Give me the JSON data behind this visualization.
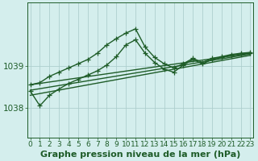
{
  "title": "Graphe pression niveau de la mer (hPa)",
  "background_color": "#d4eeed",
  "grid_color": "#aecfce",
  "line_color": "#1e5c28",
  "x_labels": [
    "0",
    "1",
    "2",
    "3",
    "4",
    "5",
    "6",
    "7",
    "8",
    "9",
    "10",
    "11",
    "12",
    "13",
    "14",
    "15",
    "16",
    "17",
    "18",
    "19",
    "20",
    "21",
    "22",
    "23"
  ],
  "yticks": [
    1038,
    1039
  ],
  "ylim": [
    1037.3,
    1040.5
  ],
  "xlim": [
    -0.3,
    23.3
  ],
  "series": [
    {
      "x": [
        0,
        1,
        2,
        3,
        4,
        5,
        6,
        7,
        8,
        9,
        10,
        11,
        12,
        13,
        14,
        15,
        16,
        17,
        18,
        19,
        20,
        21,
        22,
        23
      ],
      "y": [
        1038.55,
        1038.6,
        1038.75,
        1038.85,
        1038.95,
        1039.05,
        1039.15,
        1039.3,
        1039.5,
        1039.65,
        1039.78,
        1039.88,
        1039.45,
        1039.2,
        1039.05,
        1038.95,
        1039.05,
        1039.18,
        1039.08,
        1039.18,
        1039.22,
        1039.27,
        1039.3,
        1039.32
      ],
      "marker": "+",
      "linestyle": "-",
      "linewidth": 1.0,
      "markersize": 4
    },
    {
      "x": [
        0,
        1,
        2,
        3,
        4,
        5,
        6,
        7,
        8,
        9,
        10,
        11,
        12,
        13,
        14,
        15,
        16,
        17,
        18,
        19,
        20,
        21,
        22,
        23
      ],
      "y": [
        1038.4,
        1038.05,
        1038.3,
        1038.45,
        1038.58,
        1038.68,
        1038.78,
        1038.88,
        1039.02,
        1039.22,
        1039.5,
        1039.62,
        1039.3,
        1039.08,
        1038.92,
        1038.85,
        1039.02,
        1039.15,
        1039.05,
        1039.15,
        1039.2,
        1039.25,
        1039.28,
        1039.3
      ],
      "marker": "+",
      "linestyle": "-",
      "linewidth": 1.0,
      "markersize": 4
    },
    {
      "x": [
        0,
        23
      ],
      "y": [
        1038.55,
        1039.3
      ],
      "marker": null,
      "linestyle": "-",
      "linewidth": 1.0,
      "markersize": 0
    },
    {
      "x": [
        0,
        23
      ],
      "y": [
        1038.42,
        1039.28
      ],
      "marker": null,
      "linestyle": "-",
      "linewidth": 1.0,
      "markersize": 0
    },
    {
      "x": [
        0,
        23
      ],
      "y": [
        1038.3,
        1039.25
      ],
      "marker": null,
      "linestyle": "-",
      "linewidth": 1.0,
      "markersize": 0
    }
  ],
  "title_fontsize": 8,
  "tick_fontsize": 6.5
}
